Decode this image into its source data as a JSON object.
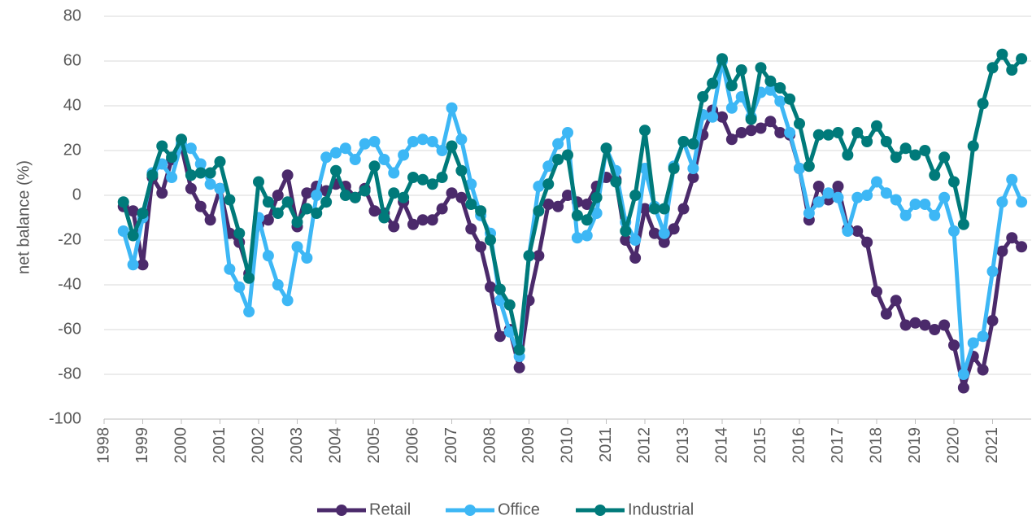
{
  "chart_data": {
    "type": "line",
    "y_label": "net balance (%)",
    "x": [
      1998.5,
      1998.75,
      1999,
      1999.25,
      1999.5,
      1999.75,
      2000,
      2000.25,
      2000.5,
      2000.75,
      2001,
      2001.25,
      2001.5,
      2001.75,
      2002,
      2002.25,
      2002.5,
      2002.75,
      2003,
      2003.25,
      2003.5,
      2003.75,
      2004,
      2004.25,
      2004.5,
      2004.75,
      2005,
      2005.25,
      2005.5,
      2005.75,
      2006,
      2006.25,
      2006.5,
      2006.75,
      2007,
      2007.25,
      2007.5,
      2007.75,
      2008,
      2008.25,
      2008.5,
      2008.75,
      2009,
      2009.25,
      2009.5,
      2009.75,
      2010,
      2010.25,
      2010.5,
      2010.75,
      2011,
      2011.25,
      2011.5,
      2011.75,
      2012,
      2012.25,
      2012.5,
      2012.75,
      2013,
      2013.25,
      2013.5,
      2013.75,
      2014,
      2014.25,
      2014.5,
      2014.75,
      2015,
      2015.25,
      2015.5,
      2015.75,
      2016,
      2016.25,
      2016.5,
      2016.75,
      2017,
      2017.25,
      2017.5,
      2017.75,
      2018,
      2018.25,
      2018.5,
      2018.75,
      2019,
      2019.25,
      2019.5,
      2019.75,
      2020,
      2020.25,
      2020.5,
      2020.75,
      2021,
      2021.25,
      2021.5,
      2021.75
    ],
    "series": [
      {
        "name": "Retail",
        "color": "#4b2a6b",
        "values": [
          -5,
          -7,
          -31,
          8,
          1,
          16,
          22,
          3,
          -5,
          -11,
          3,
          -17,
          -21,
          -35,
          -13,
          -11,
          0,
          9,
          -14,
          1,
          4,
          2,
          5,
          4,
          -1,
          3,
          -7,
          -8,
          -14,
          -3,
          -13,
          -11,
          -11,
          -6,
          1,
          -1,
          -15,
          -23,
          -41,
          -63,
          -60,
          -77,
          -47,
          -27,
          -4,
          -5,
          0,
          -3,
          -4,
          4,
          8,
          7,
          -20,
          -28,
          -6,
          -17,
          -21,
          -15,
          -6,
          8,
          27,
          38,
          35,
          25,
          28,
          29,
          30,
          33,
          28,
          27,
          12,
          -11,
          4,
          -2,
          4,
          -15,
          -16,
          -21,
          -43,
          -53,
          -47,
          -58,
          -57,
          -58,
          -60,
          -58,
          -67,
          -86,
          -72,
          -78,
          -56,
          -25,
          -19,
          -23
        ]
      },
      {
        "name": "Office",
        "color": "#3db7f5",
        "values": [
          -16,
          -31,
          -10,
          10,
          14,
          8,
          23,
          21,
          14,
          5,
          3,
          -33,
          -41,
          -52,
          -10,
          -27,
          -40,
          -47,
          -23,
          -28,
          0,
          17,
          19,
          21,
          16,
          23,
          24,
          16,
          10,
          18,
          24,
          25,
          24,
          20,
          39,
          25,
          5,
          -9,
          -17,
          -47,
          -61,
          -72,
          -27,
          4,
          13,
          23,
          28,
          -19,
          -18,
          -8,
          21,
          11,
          -12,
          -20,
          12,
          -5,
          -17,
          13,
          24,
          12,
          36,
          35,
          60,
          39,
          44,
          35,
          46,
          47,
          42,
          28,
          12,
          -8,
          -3,
          1,
          -1,
          -16,
          -1,
          0,
          6,
          1,
          -2,
          -9,
          -4,
          -4,
          -9,
          -1,
          -16,
          -80,
          -66,
          -63,
          -34,
          -3,
          7,
          -3
        ]
      },
      {
        "name": "Industrial",
        "color": "#007a7a",
        "values": [
          -3,
          -18,
          -8,
          9,
          22,
          17,
          25,
          9,
          10,
          10,
          15,
          -2,
          -17,
          -37,
          6,
          -3,
          -8,
          -3,
          -12,
          -6,
          -8,
          -3,
          11,
          0,
          -1,
          2,
          13,
          -10,
          1,
          -1,
          8,
          7,
          5,
          8,
          22,
          11,
          -4,
          -7,
          -20,
          -42,
          -49,
          -69,
          -27,
          -7,
          5,
          16,
          18,
          -9,
          -11,
          -1,
          21,
          6,
          -16,
          0,
          29,
          -6,
          -6,
          12,
          24,
          23,
          44,
          50,
          61,
          49,
          56,
          34,
          57,
          51,
          48,
          43,
          32,
          13,
          27,
          27,
          28,
          18,
          28,
          24,
          31,
          24,
          17,
          21,
          18,
          20,
          9,
          17,
          6,
          -13,
          22,
          41,
          57,
          63,
          56,
          61
        ]
      }
    ],
    "xlim": [
      1998,
      2022
    ],
    "xticks": [
      1998,
      1999,
      2000,
      2001,
      2002,
      2003,
      2004,
      2005,
      2006,
      2007,
      2008,
      2009,
      2010,
      2011,
      2012,
      2013,
      2014,
      2015,
      2016,
      2017,
      2018,
      2019,
      2020,
      2021
    ],
    "ylim": [
      -100,
      80
    ],
    "yticks": [
      -100,
      -80,
      -60,
      -40,
      -20,
      0,
      20,
      40,
      60,
      80
    ],
    "grid": true,
    "legend": "bottom"
  }
}
